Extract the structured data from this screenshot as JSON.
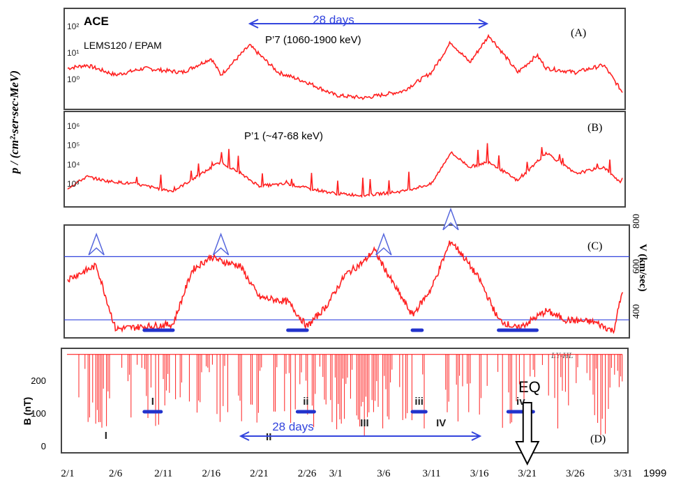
{
  "figure": {
    "y_axis_title": "p / (cm²·ser·sec·MeV)",
    "x_year": "1999",
    "colors": {
      "trace": "#ff2020",
      "accent": "#3344dd",
      "frame": "#444444",
      "text": "#000000"
    }
  },
  "chart_data": [
    {
      "panel_letter": "(A)",
      "type": "line",
      "title": "ACE",
      "subtitle": "LEMS120 / EPAM",
      "series": [
        {
          "name": "P’7 (1060-1900 keV)",
          "x_dates": [
            "2/1",
            "2/3",
            "2/6",
            "2/9",
            "2/13",
            "2/16",
            "2/17",
            "2/20",
            "2/23",
            "2/26",
            "3/1",
            "3/4",
            "3/8",
            "3/11",
            "3/13",
            "3/15",
            "3/17",
            "3/20",
            "3/22",
            "3/23",
            "3/26",
            "3/29",
            "3/31"
          ],
          "values": [
            4,
            5,
            2.5,
            4,
            3,
            8,
            2.5,
            20,
            3,
            1.5,
            0.6,
            0.5,
            0.8,
            3,
            25,
            6,
            40,
            3,
            10,
            4,
            3,
            5,
            0.7
          ]
        }
      ],
      "y_scale": "log",
      "ylim": [
        0.3,
        200
      ],
      "yticks": [
        "10⁰",
        "10¹",
        "10²"
      ],
      "annotation": "28 days"
    },
    {
      "panel_letter": "(B)",
      "type": "line",
      "series": [
        {
          "name": "P’1 (~47-68 keV)",
          "x_dates": [
            "2/1",
            "2/3",
            "2/5",
            "2/8",
            "2/12",
            "2/15",
            "2/17",
            "2/19",
            "2/21",
            "2/24",
            "2/26",
            "3/1",
            "3/4",
            "3/8",
            "3/11",
            "3/13",
            "3/15",
            "3/17",
            "3/20",
            "3/23",
            "3/26",
            "3/29",
            "3/31"
          ],
          "values": [
            2000,
            6000,
            4000,
            3000,
            1500,
            8000,
            25000,
            8000,
            2500,
            3000,
            2000,
            1200,
            1000,
            1500,
            3000,
            60000,
            15000,
            25000,
            4000,
            60000,
            8000,
            15000,
            2500
          ]
        }
      ],
      "y_scale": "log",
      "ylim": [
        500,
        2000000
      ],
      "yticks": [
        "10³",
        "10⁴",
        "10⁵",
        "10⁶"
      ]
    },
    {
      "panel_letter": "(C)",
      "type": "line",
      "series": [
        {
          "name": "V",
          "x_dates": [
            "2/1",
            "2/3",
            "2/4",
            "2/6",
            "2/9",
            "2/12",
            "2/14",
            "2/16",
            "2/17",
            "2/19",
            "2/21",
            "2/24",
            "2/26",
            "2/28",
            "3/2",
            "3/4",
            "3/5",
            "3/7",
            "3/9",
            "3/11",
            "3/13",
            "3/14",
            "3/16",
            "3/18",
            "3/20",
            "3/23",
            "3/25",
            "3/28",
            "3/30",
            "3/31"
          ],
          "values": [
            520,
            560,
            580,
            300,
            310,
            320,
            560,
            620,
            600,
            580,
            440,
            420,
            310,
            400,
            540,
            600,
            650,
            500,
            360,
            480,
            690,
            640,
            520,
            340,
            300,
            380,
            340,
            330,
            290,
            480
          ]
        }
      ],
      "ylabel": "V (km/sec)",
      "yticks": [
        "400",
        "600",
        "800"
      ],
      "ylim": [
        260,
        760
      ],
      "hlines": [
        340,
        620
      ],
      "arrow_dates": [
        "2/4",
        "2/17",
        "3/6",
        "3/13"
      ],
      "lows_dates": [
        [
          "2/9",
          "2/12"
        ],
        [
          "2/24",
          "2/26"
        ],
        [
          "3/9",
          "3/10"
        ],
        [
          "3/18",
          "3/22"
        ]
      ]
    },
    {
      "panel_letter": "(D)",
      "type": "line",
      "series": [
        {
          "name": "B",
          "tag": "LY-HL"
        }
      ],
      "ylabel": "B (nT)",
      "yticks": [
        "0",
        "100",
        "200"
      ],
      "ylim": [
        0,
        290
      ],
      "periods": [
        "I",
        "II",
        "III",
        "IV"
      ],
      "subperiods": [
        "I",
        "ii",
        "iii",
        "iv"
      ],
      "annotation": "28 days",
      "eq_label": "EQ",
      "eq_date": "3/21"
    }
  ],
  "x_ticks": [
    "2/1",
    "2/6",
    "2/11",
    "2/16",
    "2/21",
    "2/26",
    "3/1",
    "3/6",
    "3/11",
    "3/16",
    "3/21",
    "3/26",
    "3/31"
  ]
}
